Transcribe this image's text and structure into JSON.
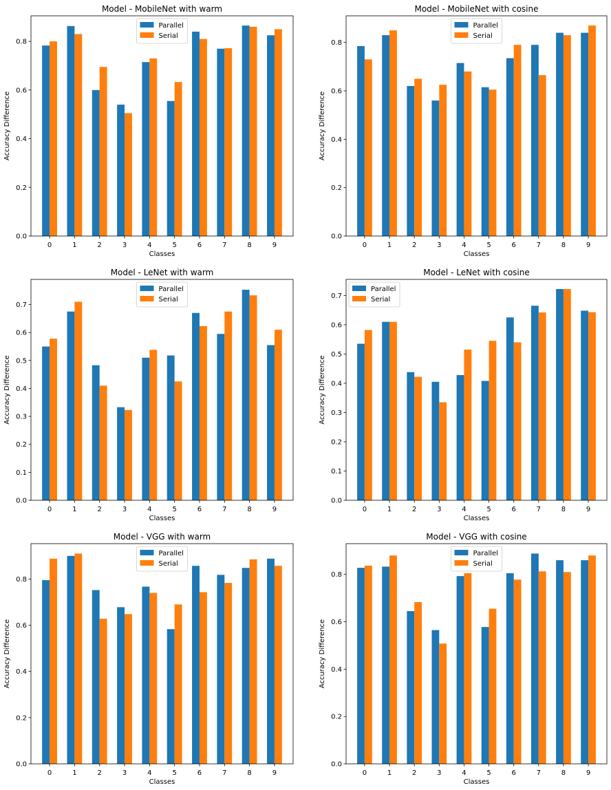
{
  "chart_data": [
    {
      "type": "bar",
      "title": "Model - MobileNet with warm",
      "xlabel": "Classes",
      "ylabel": "Accuracy Difference",
      "categories": [
        "0",
        "1",
        "2",
        "3",
        "4",
        "5",
        "6",
        "7",
        "8",
        "9"
      ],
      "ylim": [
        0,
        0.905
      ],
      "yticks": [
        "0.0",
        "0.2",
        "0.4",
        "0.6",
        "0.8"
      ],
      "legend_position": "top-center",
      "series": [
        {
          "name": "Parallel",
          "values": [
            0.783,
            0.863,
            0.6,
            0.54,
            0.715,
            0.555,
            0.84,
            0.77,
            0.865,
            0.825
          ]
        },
        {
          "name": "Serial",
          "values": [
            0.8,
            0.83,
            0.695,
            0.505,
            0.73,
            0.633,
            0.81,
            0.772,
            0.86,
            0.85
          ]
        }
      ]
    },
    {
      "type": "bar",
      "title": "Model - MobileNet with cosine",
      "xlabel": "Classes",
      "ylabel": "Accuracy Difference",
      "categories": [
        "0",
        "1",
        "2",
        "3",
        "4",
        "5",
        "6",
        "7",
        "8",
        "9"
      ],
      "ylim": [
        0,
        0.91
      ],
      "yticks": [
        "0.0",
        "0.2",
        "0.4",
        "0.6",
        "0.8"
      ],
      "legend_position": "top-center",
      "series": [
        {
          "name": "Parallel",
          "values": [
            0.785,
            0.83,
            0.62,
            0.56,
            0.715,
            0.615,
            0.735,
            0.79,
            0.84,
            0.84
          ]
        },
        {
          "name": "Serial",
          "values": [
            0.73,
            0.85,
            0.65,
            0.625,
            0.68,
            0.605,
            0.79,
            0.665,
            0.83,
            0.87
          ]
        }
      ]
    },
    {
      "type": "bar",
      "title": "Model - LeNet with warm",
      "xlabel": "Classes",
      "ylabel": "Accuracy Difference",
      "categories": [
        "0",
        "1",
        "2",
        "3",
        "4",
        "5",
        "6",
        "7",
        "8",
        "9"
      ],
      "ylim": [
        0,
        0.79
      ],
      "yticks": [
        "0.0",
        "0.1",
        "0.2",
        "0.3",
        "0.4",
        "0.5",
        "0.6",
        "0.7"
      ],
      "legend_position": "top-center",
      "series": [
        {
          "name": "Parallel",
          "values": [
            0.55,
            0.675,
            0.483,
            0.333,
            0.51,
            0.518,
            0.67,
            0.595,
            0.753,
            0.555
          ]
        },
        {
          "name": "Serial",
          "values": [
            0.578,
            0.71,
            0.41,
            0.323,
            0.538,
            0.425,
            0.623,
            0.675,
            0.733,
            0.61
          ]
        }
      ]
    },
    {
      "type": "bar",
      "title": "Model - LeNet with cosine",
      "xlabel": "Classes",
      "ylabel": "Accuracy Difference",
      "categories": [
        "0",
        "1",
        "2",
        "3",
        "4",
        "5",
        "6",
        "7",
        "8",
        "9"
      ],
      "ylim": [
        0,
        0.755
      ],
      "yticks": [
        "0.0",
        "0.1",
        "0.2",
        "0.3",
        "0.4",
        "0.5",
        "0.6",
        "0.7"
      ],
      "legend_position": "top-left",
      "series": [
        {
          "name": "Parallel",
          "values": [
            0.535,
            0.61,
            0.438,
            0.405,
            0.428,
            0.408,
            0.625,
            0.665,
            0.722,
            0.648
          ]
        },
        {
          "name": "Serial",
          "values": [
            0.582,
            0.61,
            0.422,
            0.335,
            0.515,
            0.545,
            0.54,
            0.642,
            0.722,
            0.643
          ]
        }
      ]
    },
    {
      "type": "bar",
      "title": "Model - VGG with warm",
      "xlabel": "Classes",
      "ylabel": "Accuracy Difference",
      "categories": [
        "0",
        "1",
        "2",
        "3",
        "4",
        "5",
        "6",
        "7",
        "8",
        "9"
      ],
      "ylim": [
        0,
        0.953
      ],
      "yticks": [
        "0.0",
        "0.2",
        "0.4",
        "0.6",
        "0.8"
      ],
      "legend_position": "top-center",
      "series": [
        {
          "name": "Parallel",
          "values": [
            0.795,
            0.9,
            0.752,
            0.678,
            0.767,
            0.583,
            0.857,
            0.818,
            0.848,
            0.888
          ]
        },
        {
          "name": "Serial",
          "values": [
            0.888,
            0.91,
            0.628,
            0.648,
            0.74,
            0.69,
            0.743,
            0.783,
            0.885,
            0.857
          ]
        }
      ]
    },
    {
      "type": "bar",
      "title": "Model - VGG with cosine",
      "xlabel": "Classes",
      "ylabel": "Accuracy Difference",
      "categories": [
        "0",
        "1",
        "2",
        "3",
        "4",
        "5",
        "6",
        "7",
        "8",
        "9"
      ],
      "ylim": [
        0,
        0.93
      ],
      "yticks": [
        "0.0",
        "0.2",
        "0.4",
        "0.6",
        "0.8"
      ],
      "legend_position": "top-center",
      "series": [
        {
          "name": "Parallel",
          "values": [
            0.828,
            0.833,
            0.645,
            0.565,
            0.793,
            0.578,
            0.805,
            0.888,
            0.86,
            0.86
          ]
        },
        {
          "name": "Serial",
          "values": [
            0.837,
            0.88,
            0.683,
            0.508,
            0.805,
            0.655,
            0.778,
            0.813,
            0.81,
            0.88
          ]
        }
      ]
    }
  ],
  "colors": {
    "Parallel": "#1f77b4",
    "Serial": "#ff7f0e"
  }
}
